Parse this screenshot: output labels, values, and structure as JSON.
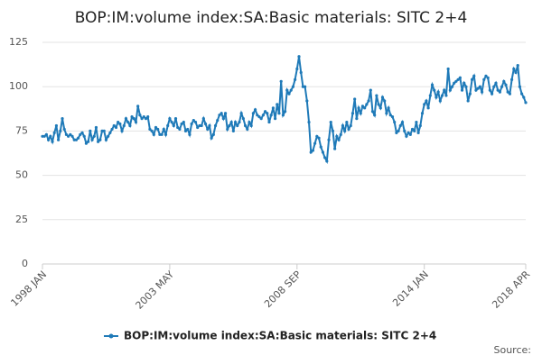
{
  "chart_data": {
    "type": "line",
    "title": "BOP:IM:volume index:SA:Basic materials: SITC 2+4",
    "source": "Source:",
    "categories": [
      "1998 JAN",
      null,
      null,
      null,
      null,
      null,
      null,
      null,
      null,
      null,
      null,
      null,
      null,
      null,
      null,
      null,
      null,
      null,
      null,
      null,
      null,
      null,
      null,
      null,
      null,
      null,
      null,
      null,
      null,
      null,
      null,
      null,
      null,
      null,
      null,
      null,
      null,
      null,
      null,
      null,
      null,
      null,
      null,
      null,
      null,
      null,
      null,
      null,
      null,
      null,
      null,
      null,
      null,
      null,
      null,
      null,
      null,
      null,
      null,
      null,
      null,
      null,
      null,
      null,
      "2003 MAY",
      null,
      null,
      null,
      null,
      null,
      null,
      null,
      null,
      null,
      null,
      null,
      null,
      null,
      null,
      null,
      null,
      null,
      null,
      null,
      null,
      null,
      null,
      null,
      null,
      null,
      null,
      null,
      null,
      null,
      null,
      null,
      null,
      null,
      null,
      null,
      null,
      null,
      null,
      null,
      null,
      null,
      null,
      null,
      null,
      null,
      null,
      null,
      null,
      null,
      null,
      null,
      null,
      null,
      null,
      null,
      null,
      null,
      null,
      null,
      null,
      null,
      null,
      null,
      "2008 SEP",
      null,
      null,
      null,
      null,
      null,
      null,
      null,
      null,
      null,
      null,
      null,
      null,
      null,
      null,
      null,
      null,
      null,
      null,
      null,
      null,
      null,
      null,
      null,
      null,
      null,
      null,
      null,
      null,
      null,
      null,
      null,
      null,
      null,
      null,
      null,
      null,
      null,
      null,
      null,
      null,
      null,
      null,
      null,
      null,
      null,
      null,
      null,
      null,
      null,
      null,
      null,
      null,
      null,
      null,
      null,
      null,
      null,
      null,
      null,
      null,
      null,
      null,
      null,
      "2014 JAN",
      null,
      null,
      null,
      null,
      null,
      null,
      null,
      null,
      null,
      null,
      null,
      null,
      null,
      null,
      null,
      null,
      null,
      null,
      null,
      null,
      null,
      null,
      null,
      null,
      null,
      null,
      null,
      null,
      null,
      null,
      null,
      null,
      null,
      null,
      null,
      null,
      null,
      null,
      null,
      null,
      null,
      null,
      null,
      null,
      null,
      null,
      null,
      null,
      null,
      null,
      "2018 APR"
    ],
    "series": [
      {
        "name": "BOP:IM:volume index:SA:Basic materials: SITC 2+4",
        "color": "#1f7ab8",
        "values": [
          72,
          72,
          73,
          70,
          72,
          69,
          74,
          78,
          70,
          75,
          82,
          76,
          73,
          72,
          73,
          72,
          70,
          70,
          71,
          73,
          74,
          72,
          68,
          69,
          75,
          70,
          72,
          77,
          69,
          70,
          75,
          75,
          70,
          72,
          74,
          76,
          78,
          77,
          80,
          79,
          75,
          78,
          82,
          80,
          78,
          83,
          82,
          80,
          89,
          84,
          82,
          83,
          82,
          83,
          76,
          75,
          73,
          77,
          76,
          73,
          73,
          76,
          73,
          78,
          82,
          80,
          78,
          82,
          77,
          76,
          79,
          80,
          75,
          76,
          73,
          79,
          81,
          80,
          77,
          78,
          78,
          82,
          79,
          76,
          78,
          71,
          73,
          78,
          81,
          84,
          85,
          82,
          85,
          76,
          78,
          80,
          75,
          80,
          78,
          80,
          85,
          82,
          78,
          76,
          80,
          78,
          85,
          87,
          84,
          83,
          82,
          84,
          86,
          85,
          80,
          84,
          88,
          82,
          90,
          85,
          103,
          84,
          86,
          98,
          96,
          98,
          100,
          104,
          110,
          117,
          108,
          100,
          100,
          92,
          80,
          63,
          64,
          68,
          72,
          71,
          66,
          63,
          60,
          58,
          70,
          80,
          75,
          65,
          72,
          70,
          73,
          78,
          75,
          80,
          76,
          78,
          85,
          93,
          82,
          88,
          85,
          89,
          88,
          90,
          92,
          98,
          86,
          84,
          95,
          90,
          88,
          94,
          92,
          85,
          88,
          84,
          83,
          80,
          74,
          75,
          78,
          80,
          75,
          72,
          74,
          73,
          76,
          75,
          80,
          74,
          78,
          85,
          90,
          92,
          88,
          95,
          101,
          98,
          94,
          97,
          92,
          95,
          98,
          95,
          110,
          98,
          100,
          102,
          103,
          104,
          105,
          98,
          102,
          100,
          92,
          96,
          104,
          106,
          98,
          99,
          100,
          97,
          104,
          106,
          105,
          98,
          96,
          100,
          102,
          98,
          97,
          100,
          103,
          101,
          97,
          96,
          104,
          110,
          108,
          112,
          100,
          96,
          94,
          91
        ]
      }
    ],
    "ylim": [
      0,
      125
    ],
    "yticks": [
      0,
      25,
      50,
      75,
      100,
      125
    ],
    "grid": true
  }
}
